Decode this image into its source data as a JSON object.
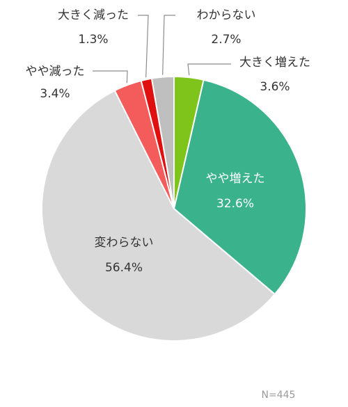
{
  "chart_data": {
    "type": "pie",
    "slices": [
      {
        "label": "大きく増えた",
        "value": 3.6,
        "value_label": "3.6%",
        "color": "#7ec41a"
      },
      {
        "label": "やや増えた",
        "value": 32.6,
        "value_label": "32.6%",
        "color": "#3ab38d"
      },
      {
        "label": "変わらない",
        "value": 56.4,
        "value_label": "56.4%",
        "color": "#d9d9d9"
      },
      {
        "label": "やや減った",
        "value": 3.4,
        "value_label": "3.4%",
        "color": "#f45b5b"
      },
      {
        "label": "大きく減った",
        "value": 1.3,
        "value_label": "1.3%",
        "color": "#e01010"
      },
      {
        "label": "わからない",
        "value": 2.7,
        "value_label": "2.7%",
        "color": "#bfbfbf"
      }
    ],
    "note": "N=445"
  }
}
